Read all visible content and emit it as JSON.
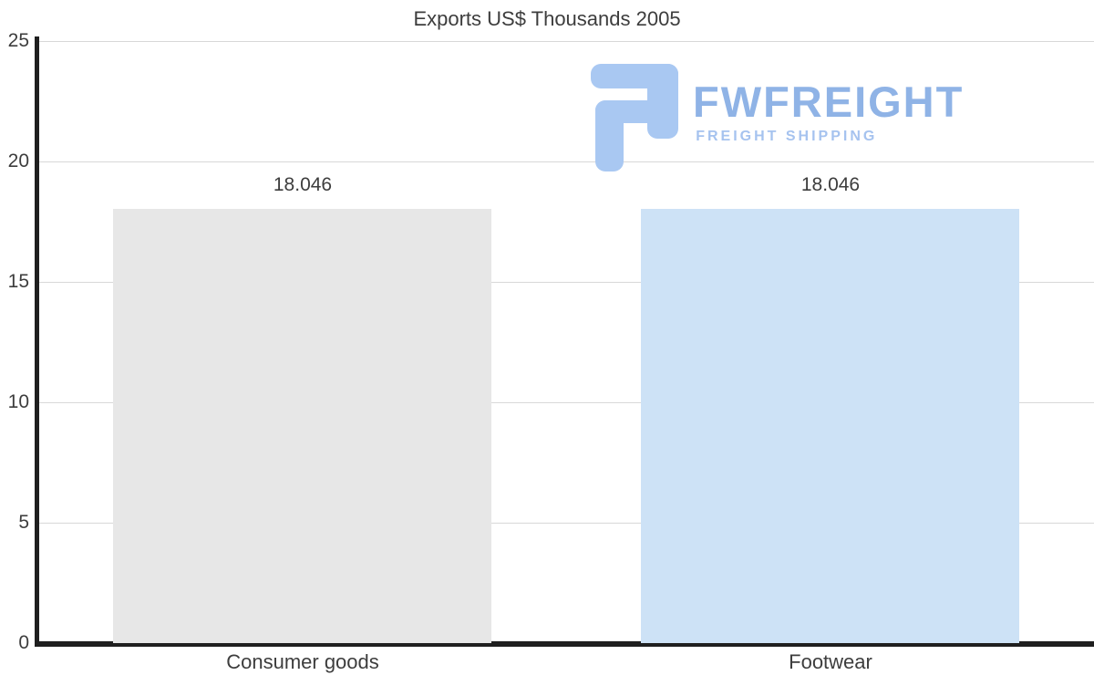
{
  "title": "Exports US$ Thousands 2005",
  "watermark": {
    "name": "FWFREIGHT",
    "tagline": "FREIGHT SHIPPING",
    "icon": "fwfreight-logo-icon",
    "text_color": "#8fb3e6",
    "tagline_color": "#a6c3ef",
    "icon_color": "#a9c8f2"
  },
  "colors": {
    "bar_consumer_goods": "#e7e7e7",
    "bar_footwear": "#cde2f6",
    "gridline": "#d8d8d8",
    "axis": "#1f1f1f",
    "text": "#3d3d3d"
  },
  "chart_data": {
    "type": "bar",
    "title": "Exports US$ Thousands 2005",
    "categories": [
      "Consumer goods",
      "Footwear"
    ],
    "values": [
      18.046,
      18.046
    ],
    "value_labels": [
      "18.046",
      "18.046"
    ],
    "bar_colors": [
      "#e7e7e7",
      "#cde2f6"
    ],
    "xlabel": "",
    "ylabel": "",
    "ylim": [
      0,
      25
    ],
    "yticks": [
      0,
      5,
      10,
      15,
      20,
      25
    ],
    "grid": true,
    "legend": "none"
  }
}
